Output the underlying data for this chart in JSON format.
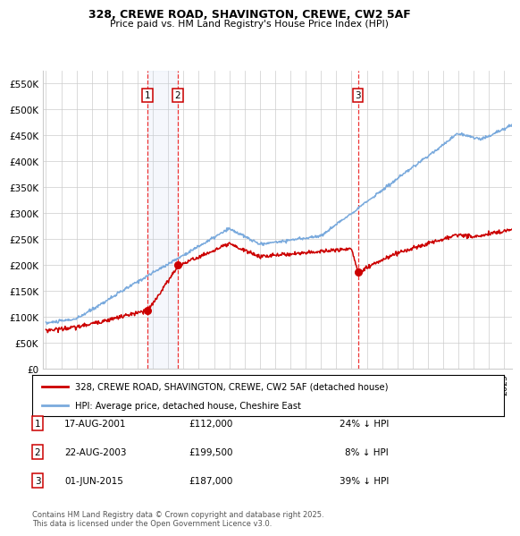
{
  "title_line1": "328, CREWE ROAD, SHAVINGTON, CREWE, CW2 5AF",
  "title_line2": "Price paid vs. HM Land Registry's House Price Index (HPI)",
  "ylim": [
    0,
    575000
  ],
  "yticks": [
    0,
    50000,
    100000,
    150000,
    200000,
    250000,
    300000,
    350000,
    400000,
    450000,
    500000,
    550000
  ],
  "ytick_labels": [
    "£0",
    "£50K",
    "£100K",
    "£150K",
    "£200K",
    "£250K",
    "£300K",
    "£350K",
    "£400K",
    "£450K",
    "£500K",
    "£550K"
  ],
  "sale_prices": [
    112000,
    199500,
    187000
  ],
  "sale_labels": [
    "1",
    "2",
    "3"
  ],
  "sale_annotations": [
    "17-AUG-2001",
    "22-AUG-2003",
    "01-JUN-2015"
  ],
  "sale_amounts": [
    "£112,000",
    "£199,500",
    "£187,000"
  ],
  "sale_hpi_diff": [
    "24% ↓ HPI",
    "8% ↓ HPI",
    "39% ↓ HPI"
  ],
  "red_line_color": "#cc0000",
  "blue_line_color": "#7aaadd",
  "vline_color": "#ee3333",
  "grid_color": "#cccccc",
  "legend_label_red": "328, CREWE ROAD, SHAVINGTON, CREWE, CW2 5AF (detached house)",
  "legend_label_blue": "HPI: Average price, detached house, Cheshire East",
  "footnote": "Contains HM Land Registry data © Crown copyright and database right 2025.\nThis data is licensed under the Open Government Licence v3.0.",
  "x_start_year": 1995,
  "x_end_year": 2025
}
